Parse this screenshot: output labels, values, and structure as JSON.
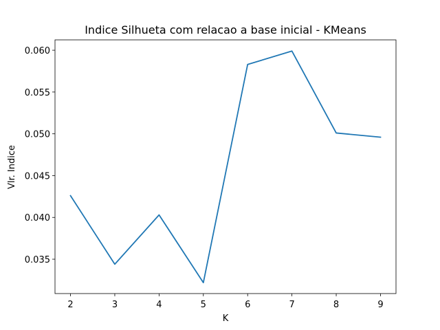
{
  "chart_data": {
    "type": "line",
    "title": "Indice Silhueta com relacao a base inicial - KMeans",
    "xlabel": "K",
    "ylabel": "Vlr. Indice",
    "x": [
      2,
      3,
      4,
      5,
      6,
      7,
      8,
      9
    ],
    "series": [
      {
        "values": [
          0.0426,
          0.0344,
          0.0403,
          0.0322,
          0.0583,
          0.0599,
          0.0501,
          0.0496
        ]
      }
    ],
    "xticks": [
      "2",
      "3",
      "4",
      "5",
      "6",
      "7",
      "8",
      "9"
    ],
    "yticks": [
      "0.035",
      "0.040",
      "0.045",
      "0.050",
      "0.055",
      "0.060"
    ],
    "xlim": [
      1.65,
      9.35
    ],
    "ylim": [
      0.03089,
      0.06124
    ],
    "grid": false,
    "line_color": "#1f77b4"
  }
}
